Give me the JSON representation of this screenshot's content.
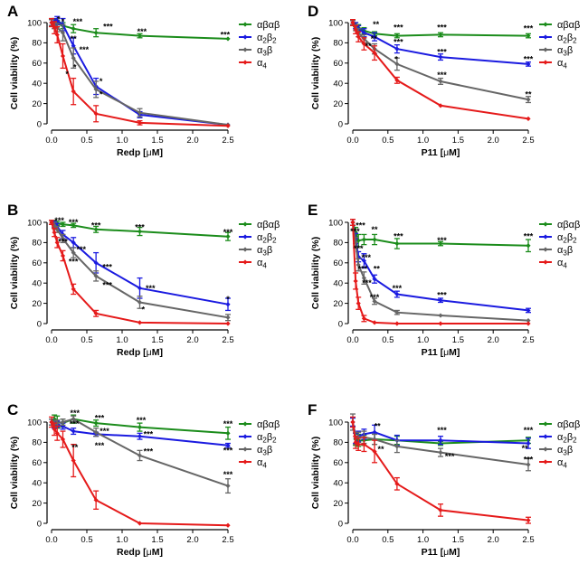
{
  "colors": {
    "abab": "#1b8c1b",
    "a2b2": "#1a1ae0",
    "a3b": "#666666",
    "a4": "#e51a1a",
    "axis": "#000000"
  },
  "legend": {
    "abab": {
      "g1": "αβαβ"
    },
    "a2b2": {
      "g1": "α",
      "s1": "2",
      "g2": "β",
      "s2": "2"
    },
    "a3b": {
      "g1": "α",
      "s1": "3",
      "g2": "β"
    },
    "a4": {
      "g1": "α",
      "s1": "4"
    }
  },
  "chart_data": [
    {
      "panel": "A",
      "type": "line",
      "xlabel": {
        "text": "Redp ",
        "mu": "μ",
        "unit": "M",
        "open": "[",
        "close": "]"
      },
      "ylabel": "Cell viability (%)",
      "xlim": [
        0,
        2.5
      ],
      "ylim": [
        0,
        100
      ],
      "xticks": [
        "0.0",
        "0.5",
        "1.0",
        "1.5",
        "2.0",
        "2.5"
      ],
      "yticks": [
        "0",
        "20",
        "40",
        "60",
        "80",
        "100"
      ],
      "x": [
        0,
        0.04,
        0.08,
        0.16,
        0.31,
        0.63,
        1.25,
        2.5
      ],
      "series": [
        {
          "key": "abab",
          "values": [
            100,
            100,
            99,
            97,
            94,
            90,
            87,
            84
          ],
          "errors": [
            3,
            3,
            3,
            3,
            4,
            4,
            2,
            1
          ]
        },
        {
          "key": "a2b2",
          "values": [
            100,
            101,
            102,
            98,
            77,
            37,
            9,
            -1
          ],
          "errors": [
            3,
            3,
            4,
            6,
            8,
            8,
            3,
            1
          ]
        },
        {
          "key": "a3b",
          "values": [
            100,
            97,
            95,
            90,
            65,
            34,
            11,
            -1
          ],
          "errors": [
            3,
            3,
            4,
            8,
            10,
            8,
            4,
            1
          ]
        },
        {
          "key": "a4",
          "values": [
            100,
            95,
            88,
            67,
            32,
            10,
            1,
            -2
          ],
          "errors": [
            4,
            6,
            8,
            12,
            13,
            8,
            2,
            1
          ]
        }
      ],
      "annotations": [
        {
          "text": "*",
          "x": 0.1,
          "y": 103
        },
        {
          "text": "*",
          "x": 0.16,
          "y": 101
        },
        {
          "text": "***",
          "x": 0.37,
          "y": 101
        },
        {
          "text": "***",
          "x": 0.8,
          "y": 96
        },
        {
          "text": "***",
          "x": 1.28,
          "y": 91
        },
        {
          "text": "***",
          "x": 2.46,
          "y": 88
        },
        {
          "text": "**",
          "x": 0.31,
          "y": 84
        },
        {
          "text": "***",
          "x": 0.46,
          "y": 73
        },
        {
          "text": "*",
          "x": 0.33,
          "y": 56
        },
        {
          "text": "*",
          "x": 0.22,
          "y": 49
        },
        {
          "text": "*",
          "x": 0.7,
          "y": 42
        },
        {
          "text": "*",
          "x": 0.7,
          "y": 29
        }
      ]
    },
    {
      "panel": "B",
      "type": "line",
      "xlabel": {
        "text": "Redp ",
        "mu": "μ",
        "unit": "M",
        "open": "[",
        "close": "]"
      },
      "ylabel": "Cell viability (%)",
      "xlim": [
        0,
        2.5
      ],
      "ylim": [
        0,
        100
      ],
      "xticks": [
        "0.0",
        "0.5",
        "1.0",
        "1.5",
        "2.0",
        "2.5"
      ],
      "yticks": [
        "0",
        "20",
        "40",
        "60",
        "80",
        "100"
      ],
      "x": [
        0,
        0.04,
        0.08,
        0.16,
        0.31,
        0.63,
        1.25,
        2.5
      ],
      "series": [
        {
          "key": "abab",
          "values": [
            100,
            100,
            99,
            98,
            97,
            93,
            91,
            86
          ],
          "errors": [
            2,
            2,
            2,
            2,
            2,
            3,
            4,
            4
          ]
        },
        {
          "key": "a2b2",
          "values": [
            100,
            98,
            96,
            88,
            80,
            60,
            35,
            19
          ],
          "errors": [
            2,
            3,
            3,
            4,
            5,
            10,
            10,
            6
          ]
        },
        {
          "key": "a3b",
          "values": [
            100,
            97,
            93,
            84,
            70,
            47,
            21,
            6
          ],
          "errors": [
            2,
            3,
            3,
            4,
            5,
            5,
            6,
            3
          ]
        },
        {
          "key": "a4",
          "values": [
            100,
            90,
            80,
            67,
            34,
            10,
            1,
            0
          ],
          "errors": [
            2,
            4,
            5,
            5,
            5,
            3,
            1,
            1
          ]
        }
      ],
      "annotations": [
        {
          "text": "***",
          "x": 0.11,
          "y": 102
        },
        {
          "text": "***",
          "x": 0.31,
          "y": 100
        },
        {
          "text": "***",
          "x": 0.63,
          "y": 97
        },
        {
          "text": "***",
          "x": 1.25,
          "y": 95
        },
        {
          "text": "***",
          "x": 2.5,
          "y": 90
        },
        {
          "text": "***",
          "x": 0.16,
          "y": 81
        },
        {
          "text": "***",
          "x": 0.42,
          "y": 73
        },
        {
          "text": "***",
          "x": 0.31,
          "y": 61
        },
        {
          "text": "***",
          "x": 0.79,
          "y": 56
        },
        {
          "text": "***",
          "x": 0.79,
          "y": 38
        },
        {
          "text": "***",
          "x": 1.4,
          "y": 35
        },
        {
          "text": "*",
          "x": 1.3,
          "y": 14
        },
        {
          "text": "*",
          "x": 2.5,
          "y": 24
        }
      ]
    },
    {
      "panel": "C",
      "type": "line",
      "xlabel": {
        "text": "Redp ",
        "mu": "μ",
        "unit": "M",
        "open": "[",
        "close": "]"
      },
      "ylabel": "Cell viability (%)",
      "xlim": [
        0,
        2.5
      ],
      "ylim": [
        0,
        100
      ],
      "xticks": [
        "0.0",
        "0.5",
        "1.0",
        "1.5",
        "2.0",
        "2.5"
      ],
      "yticks": [
        "0",
        "20",
        "40",
        "60",
        "80",
        "100"
      ],
      "x": [
        0,
        0.04,
        0.08,
        0.16,
        0.31,
        0.63,
        1.25,
        2.5
      ],
      "series": [
        {
          "key": "abab",
          "values": [
            100,
            103,
            100,
            99,
            103,
            99,
            95,
            89
          ],
          "errors": [
            3,
            4,
            6,
            4,
            4,
            3,
            4,
            6
          ]
        },
        {
          "key": "a2b2",
          "values": [
            100,
            97,
            98,
            96,
            91,
            88,
            86,
            77
          ],
          "errors": [
            3,
            3,
            3,
            3,
            3,
            2,
            3,
            2
          ]
        },
        {
          "key": "a3b",
          "values": [
            100,
            98,
            99,
            100,
            103,
            90,
            67,
            37
          ],
          "errors": [
            3,
            3,
            3,
            3,
            3,
            4,
            5,
            7
          ]
        },
        {
          "key": "a4",
          "values": [
            100,
            93,
            89,
            83,
            62,
            23,
            0,
            -2
          ],
          "errors": [
            5,
            6,
            7,
            8,
            16,
            9,
            1,
            1
          ]
        }
      ],
      "annotations": [
        {
          "text": "***",
          "x": 0.33,
          "y": 109
        },
        {
          "text": "***",
          "x": 0.68,
          "y": 104
        },
        {
          "text": "***",
          "x": 1.27,
          "y": 102
        },
        {
          "text": "***",
          "x": 2.5,
          "y": 98
        },
        {
          "text": "***",
          "x": 0.32,
          "y": 98
        },
        {
          "text": "***",
          "x": 0.75,
          "y": 91
        },
        {
          "text": "***",
          "x": 1.37,
          "y": 88
        },
        {
          "text": "**",
          "x": 0.33,
          "y": 75
        },
        {
          "text": "***",
          "x": 0.68,
          "y": 77
        },
        {
          "text": "***",
          "x": 1.37,
          "y": 71
        },
        {
          "text": "***",
          "x": 2.5,
          "y": 72
        },
        {
          "text": "***",
          "x": 2.5,
          "y": 48
        }
      ]
    },
    {
      "panel": "D",
      "type": "line",
      "xlabel": {
        "text": "P11 ",
        "mu": "μ",
        "unit": "M",
        "open": "[",
        "close": "]"
      },
      "ylabel": "Cell viability (%)",
      "xlim": [
        0,
        2.5
      ],
      "ylim": [
        0,
        100
      ],
      "xticks": [
        "0.0",
        "0.5",
        "1.0",
        "1.5",
        "2.0",
        "2.5"
      ],
      "yticks": [
        "0",
        "20",
        "40",
        "60",
        "80",
        "100"
      ],
      "x": [
        0,
        0.04,
        0.08,
        0.16,
        0.31,
        0.63,
        1.25,
        2.5
      ],
      "series": [
        {
          "key": "abab",
          "values": [
            100,
            98,
            95,
            92,
            89,
            87,
            88,
            87
          ],
          "errors": [
            2,
            2,
            3,
            3,
            2,
            2,
            2,
            2
          ]
        },
        {
          "key": "a2b2",
          "values": [
            100,
            97,
            94,
            90,
            86,
            74,
            66,
            59
          ],
          "errors": [
            2,
            3,
            3,
            4,
            4,
            4,
            3,
            2
          ]
        },
        {
          "key": "a3b",
          "values": [
            100,
            95,
            90,
            84,
            74,
            59,
            42,
            24
          ],
          "errors": [
            2,
            3,
            4,
            4,
            5,
            6,
            3,
            3
          ]
        },
        {
          "key": "a4",
          "values": [
            100,
            93,
            86,
            79,
            70,
            43,
            18,
            5
          ],
          "errors": [
            3,
            4,
            5,
            6,
            7,
            3,
            1,
            1
          ]
        }
      ],
      "annotations": [
        {
          "text": "**",
          "x": 0.33,
          "y": 98
        },
        {
          "text": "***",
          "x": 0.65,
          "y": 95
        },
        {
          "text": "***",
          "x": 1.27,
          "y": 95
        },
        {
          "text": "***",
          "x": 2.5,
          "y": 94
        },
        {
          "text": "**",
          "x": 0.3,
          "y": 84
        },
        {
          "text": "***",
          "x": 0.65,
          "y": 81
        },
        {
          "text": "***",
          "x": 1.27,
          "y": 71
        },
        {
          "text": "***",
          "x": 2.5,
          "y": 64
        },
        {
          "text": "**",
          "x": 0.22,
          "y": 77
        },
        {
          "text": "*",
          "x": 0.62,
          "y": 64
        },
        {
          "text": "***",
          "x": 1.27,
          "y": 48
        },
        {
          "text": "**",
          "x": 2.5,
          "y": 29
        }
      ]
    },
    {
      "panel": "E",
      "type": "line",
      "xlabel": {
        "text": "P11 ",
        "mu": "μ",
        "unit": "M",
        "open": "[",
        "close": "]"
      },
      "ylabel": "Cell viability (%)",
      "xlim": [
        0,
        2.5
      ],
      "ylim": [
        0,
        100
      ],
      "xticks": [
        "0.0",
        "0.5",
        "1.0",
        "1.5",
        "2.0",
        "2.5"
      ],
      "yticks": [
        "0",
        "20",
        "40",
        "60",
        "80",
        "100"
      ],
      "x": [
        0,
        0.04,
        0.08,
        0.16,
        0.31,
        0.63,
        1.25,
        2.5
      ],
      "series": [
        {
          "key": "abab",
          "values": [
            100,
            90,
            82,
            83,
            83,
            79,
            79,
            77
          ],
          "errors": [
            3,
            5,
            6,
            5,
            5,
            5,
            2,
            6
          ]
        },
        {
          "key": "a2b2",
          "values": [
            100,
            84,
            66,
            62,
            44,
            29,
            23,
            13
          ],
          "errors": [
            3,
            5,
            5,
            7,
            4,
            3,
            2,
            2
          ]
        },
        {
          "key": "a3b",
          "values": [
            100,
            80,
            58,
            45,
            22,
            11,
            8,
            3
          ],
          "errors": [
            3,
            5,
            6,
            6,
            3,
            2,
            1,
            1
          ]
        },
        {
          "key": "a4",
          "values": [
            100,
            42,
            20,
            5,
            1,
            0,
            0,
            0
          ],
          "errors": [
            3,
            8,
            6,
            3,
            1,
            1,
            1,
            1
          ]
        }
      ],
      "annotations": [
        {
          "text": "***",
          "x": 0.11,
          "y": 97
        },
        {
          "text": "**",
          "x": 0.31,
          "y": 93
        },
        {
          "text": "***",
          "x": 0.03,
          "y": 91
        },
        {
          "text": "***",
          "x": 0.65,
          "y": 86
        },
        {
          "text": "***",
          "x": 1.27,
          "y": 82
        },
        {
          "text": "***",
          "x": 2.5,
          "y": 86
        },
        {
          "text": "***",
          "x": 0.08,
          "y": 74
        },
        {
          "text": "***",
          "x": 0.19,
          "y": 65
        },
        {
          "text": "***",
          "x": 0.14,
          "y": 54
        },
        {
          "text": "**",
          "x": 0.34,
          "y": 54
        },
        {
          "text": "***",
          "x": 0.2,
          "y": 40
        },
        {
          "text": "***",
          "x": 0.31,
          "y": 26
        },
        {
          "text": "***",
          "x": 0.63,
          "y": 35
        },
        {
          "text": "***",
          "x": 1.27,
          "y": 28
        }
      ]
    },
    {
      "panel": "F",
      "type": "line",
      "xlabel": {
        "text": "P11 ",
        "mu": "μ",
        "unit": "M",
        "open": "[",
        "close": "]"
      },
      "ylabel": "Cell viability (%)",
      "xlim": [
        0,
        2.5
      ],
      "ylim": [
        0,
        100
      ],
      "xticks": [
        "0.0",
        "0.5",
        "1.0",
        "1.5",
        "2.0",
        "2.5"
      ],
      "yticks": [
        "0",
        "20",
        "40",
        "60",
        "80",
        "100"
      ],
      "x": [
        0,
        0.04,
        0.08,
        0.16,
        0.31,
        0.63,
        1.25,
        2.5
      ],
      "series": [
        {
          "key": "abab",
          "values": [
            100,
            83,
            82,
            82,
            83,
            82,
            79,
            82
          ],
          "errors": [
            4,
            6,
            6,
            5,
            5,
            4,
            2,
            3
          ]
        },
        {
          "key": "a2b2",
          "values": [
            100,
            84,
            86,
            88,
            90,
            82,
            82,
            79
          ],
          "errors": [
            4,
            5,
            5,
            5,
            7,
            5,
            4,
            5
          ]
        },
        {
          "key": "a3b",
          "values": [
            100,
            84,
            85,
            85,
            83,
            76,
            70,
            58
          ],
          "errors": [
            8,
            6,
            5,
            6,
            5,
            6,
            4,
            6
          ]
        },
        {
          "key": "a4",
          "values": [
            100,
            80,
            78,
            78,
            71,
            39,
            13,
            3
          ],
          "errors": [
            5,
            6,
            6,
            7,
            11,
            6,
            6,
            3
          ]
        }
      ],
      "annotations": [
        {
          "text": "**",
          "x": 0.35,
          "y": 96
        },
        {
          "text": "***",
          "x": 1.27,
          "y": 92
        },
        {
          "text": "***",
          "x": 2.5,
          "y": 92
        },
        {
          "text": "**",
          "x": 0.4,
          "y": 73
        },
        {
          "text": "***",
          "x": 1.38,
          "y": 66
        },
        {
          "text": "**",
          "x": 2.45,
          "y": 74
        },
        {
          "text": "***",
          "x": 2.5,
          "y": 63
        }
      ]
    }
  ]
}
